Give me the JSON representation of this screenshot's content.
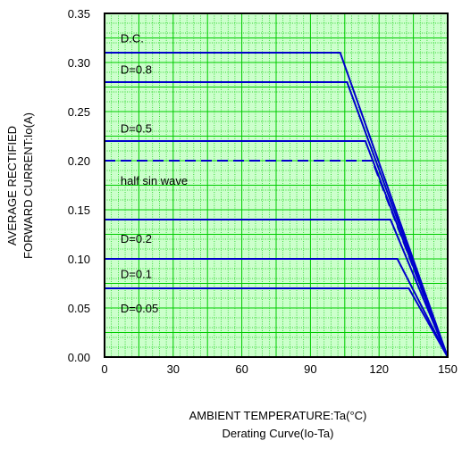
{
  "chart_data": {
    "type": "line",
    "title": "",
    "caption": "Derating Curve(Io-Ta)",
    "xlabel": "AMBIENT TEMPERATURE:Ta(°C)",
    "ylabel_lines": [
      "AVERAGE RECTIFIED",
      "FORWARD CURRENT:Io(A)"
    ],
    "xlim": [
      0,
      150
    ],
    "ylim": [
      0,
      0.35
    ],
    "x_ticks": [
      0,
      30,
      60,
      90,
      120,
      150
    ],
    "y_ticks": [
      0.0,
      0.05,
      0.1,
      0.15,
      0.2,
      0.25,
      0.3,
      0.35
    ],
    "x_tick_labels": [
      "0",
      "30",
      "60",
      "90",
      "120",
      "150"
    ],
    "y_tick_labels": [
      "0.00",
      "0.05",
      "0.10",
      "0.15",
      "0.20",
      "0.25",
      "0.30",
      "0.35"
    ],
    "grid": true,
    "grid_color": "#00cc00",
    "background_color": "#ccffcc",
    "line_color": "#0000cc",
    "series": [
      {
        "label": "D.C.",
        "style": "solid",
        "points": [
          [
            0,
            0.31
          ],
          [
            103,
            0.31
          ],
          [
            150,
            0
          ]
        ]
      },
      {
        "label": "D=0.8",
        "style": "solid",
        "points": [
          [
            0,
            0.28
          ],
          [
            106,
            0.28
          ],
          [
            150,
            0
          ]
        ]
      },
      {
        "label": "D=0.5",
        "style": "solid",
        "points": [
          [
            0,
            0.22
          ],
          [
            114,
            0.22
          ],
          [
            150,
            0
          ]
        ]
      },
      {
        "label": "half sin wave",
        "style": "dashed",
        "points": [
          [
            0,
            0.2
          ],
          [
            117,
            0.2
          ],
          [
            150,
            0
          ]
        ]
      },
      {
        "label": "D=0.2",
        "style": "solid",
        "points": [
          [
            0,
            0.14
          ],
          [
            125,
            0.14
          ],
          [
            150,
            0
          ]
        ]
      },
      {
        "label": "D=0.1",
        "style": "solid",
        "points": [
          [
            0,
            0.1
          ],
          [
            128,
            0.1
          ],
          [
            150,
            0
          ]
        ]
      },
      {
        "label": "D=0.05",
        "style": "solid",
        "points": [
          [
            0,
            0.07
          ],
          [
            133,
            0.07
          ],
          [
            150,
            0
          ]
        ]
      }
    ],
    "annotations": [
      {
        "text": "D.C.",
        "x": 7,
        "y": 0.325
      },
      {
        "text": "D=0.8",
        "x": 7,
        "y": 0.293
      },
      {
        "text": "D=0.5",
        "x": 7,
        "y": 0.233
      },
      {
        "text": "half sin wave",
        "x": 7,
        "y": 0.18
      },
      {
        "text": "D=0.2",
        "x": 7,
        "y": 0.121
      },
      {
        "text": "D=0.1",
        "x": 7,
        "y": 0.085
      },
      {
        "text": "D=0.05",
        "x": 7,
        "y": 0.05
      }
    ]
  }
}
